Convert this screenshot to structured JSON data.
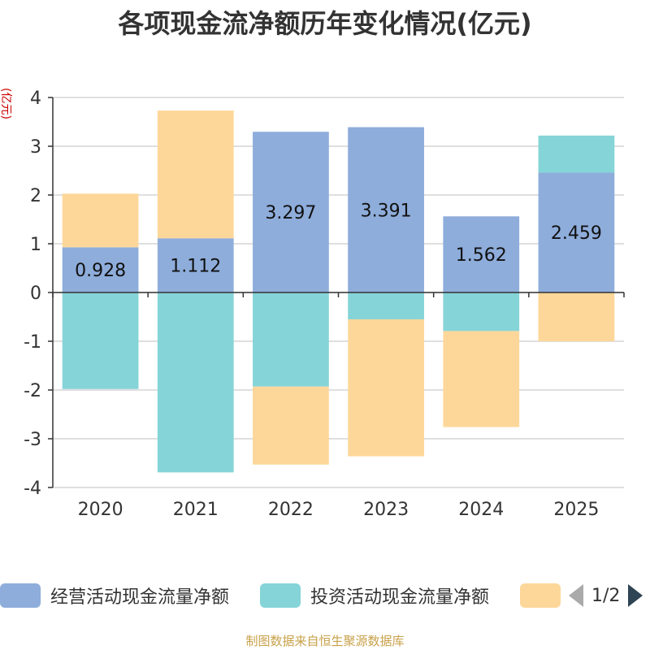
{
  "chart_data": {
    "type": "bar",
    "stacked": true,
    "title": "各项现金流净额历年变化情况(亿元)",
    "ylabel": "(亿元)",
    "categories": [
      "2020",
      "2021",
      "2022",
      "2023",
      "2024",
      "2025"
    ],
    "ylim": [
      -4,
      4
    ],
    "yticks": [
      "4",
      "3",
      "2",
      "1",
      "0",
      "-1",
      "-2",
      "-3",
      "-4"
    ],
    "grid": true,
    "series": [
      {
        "name": "经营活动现金流量净额",
        "color": "#8eaddb",
        "values": [
          0.928,
          1.112,
          3.297,
          3.391,
          1.562,
          2.459
        ],
        "labels": [
          "0.928",
          "1.112",
          "3.297",
          "3.391",
          "1.562",
          "2.459"
        ]
      },
      {
        "name": "投资活动现金流量净额",
        "color": "#85d4d8",
        "values": [
          -1.98,
          -3.69,
          -1.93,
          -0.55,
          -0.79,
          0.76
        ]
      },
      {
        "name": "",
        "color": "#fdd79a",
        "values": [
          1.1,
          2.62,
          -1.6,
          -2.81,
          -1.97,
          -1.0
        ]
      }
    ],
    "legend": {
      "position": "bottom",
      "page": "1/2"
    },
    "source": "制图数据来自恒生聚源数据库"
  }
}
